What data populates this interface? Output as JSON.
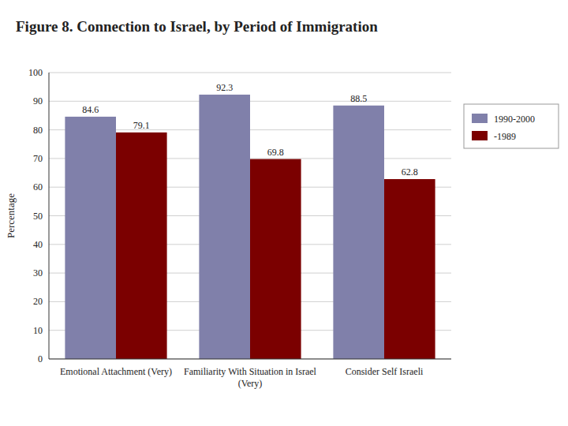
{
  "chart_data": {
    "type": "bar",
    "title": "Figure 8. Connection to Israel, by Period of Immigration",
    "categories": [
      "Emotional Attachment (Very)",
      "Familiarity With Situation in Israel\n(Very)",
      "Consider Self Israeli"
    ],
    "series": [
      {
        "name": "1990-2000",
        "color": "#8080AA",
        "values": [
          84.6,
          92.3,
          88.5
        ]
      },
      {
        "name": "-1989",
        "color": "#7B0000",
        "values": [
          79.1,
          69.8,
          62.8
        ]
      }
    ],
    "ylabel": "Percentage",
    "ylim": [
      0,
      100
    ],
    "yticks": [
      0,
      10,
      20,
      30,
      40,
      50,
      60,
      70,
      80,
      90,
      100
    ],
    "grid": true,
    "legend": "right",
    "data_labels": true
  }
}
